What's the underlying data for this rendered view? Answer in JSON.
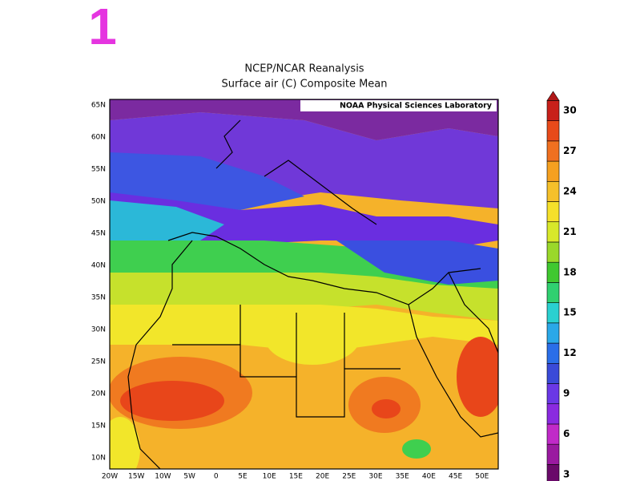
{
  "header": {
    "badge": "1"
  },
  "map": {
    "title": "NCEP/NCAR Reanalysis",
    "subtitle": "Surface air (C) Composite Mean",
    "credit": "NOAA Physical Sciences Laboratory",
    "lat_labels": [
      "65N",
      "60N",
      "55N",
      "50N",
      "45N",
      "40N",
      "35N",
      "30N",
      "25N",
      "20N",
      "15N",
      "10N"
    ],
    "lon_labels": [
      "20W",
      "15W",
      "10W",
      "5W",
      "0",
      "5E",
      "10E",
      "15E",
      "20E",
      "25E",
      "30E",
      "35E",
      "40E",
      "45E",
      "50E"
    ]
  },
  "colorbar": {
    "labels": [
      30,
      27,
      24,
      21,
      18,
      15,
      12,
      9,
      6,
      3
    ]
  }
}
